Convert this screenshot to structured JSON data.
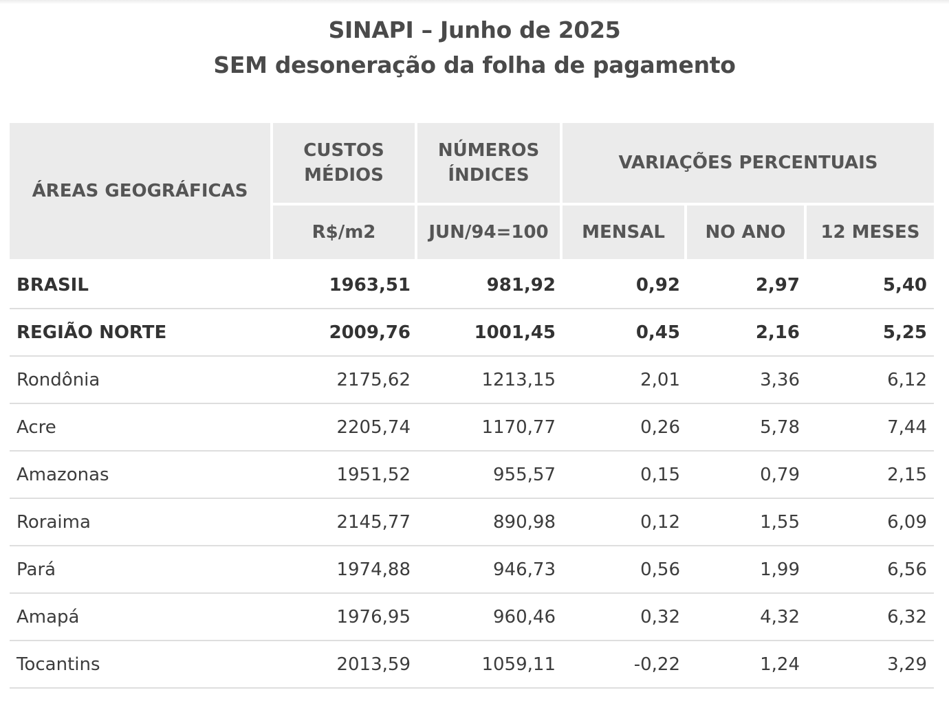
{
  "title": {
    "line1": "SINAPI – Junho de 2025",
    "line2": "SEM desoneração da folha de pagamento"
  },
  "table": {
    "headers": {
      "areas": "ÁREAS GEOGRÁFICAS",
      "custos": "CUSTOS MÉDIOS",
      "numeros": "NÚMEROS ÍNDICES",
      "variacoes": "VARIAÇÕES PERCENTUAIS",
      "custos_unit": "R$/m2",
      "numeros_unit": "JUN/94=100",
      "mensal": "MENSAL",
      "no_ano": "NO ANO",
      "doze_meses": "12 MESES"
    },
    "rows": [
      {
        "name": "BRASIL",
        "custo": "1963,51",
        "indice": "981,92",
        "mensal": "0,92",
        "ano": "2,97",
        "meses12": "5,40",
        "bold": true
      },
      {
        "name": "REGIÃO NORTE",
        "custo": "2009,76",
        "indice": "1001,45",
        "mensal": "0,45",
        "ano": "2,16",
        "meses12": "5,25",
        "bold": true
      },
      {
        "name": "Rondônia",
        "custo": "2175,62",
        "indice": "1213,15",
        "mensal": "2,01",
        "ano": "3,36",
        "meses12": "6,12",
        "bold": false
      },
      {
        "name": "Acre",
        "custo": "2205,74",
        "indice": "1170,77",
        "mensal": "0,26",
        "ano": "5,78",
        "meses12": "7,44",
        "bold": false
      },
      {
        "name": "Amazonas",
        "custo": "1951,52",
        "indice": "955,57",
        "mensal": "0,15",
        "ano": "0,79",
        "meses12": "2,15",
        "bold": false
      },
      {
        "name": "Roraima",
        "custo": "2145,77",
        "indice": "890,98",
        "mensal": "0,12",
        "ano": "1,55",
        "meses12": "6,09",
        "bold": false
      },
      {
        "name": "Pará",
        "custo": "1974,88",
        "indice": "946,73",
        "mensal": "0,56",
        "ano": "1,99",
        "meses12": "6,56",
        "bold": false
      },
      {
        "name": "Amapá",
        "custo": "1976,95",
        "indice": "960,46",
        "mensal": "0,32",
        "ano": "4,32",
        "meses12": "6,32",
        "bold": false
      },
      {
        "name": "Tocantins",
        "custo": "2013,59",
        "indice": "1059,11",
        "mensal": "-0,22",
        "ano": "1,24",
        "meses12": "3,29",
        "bold": false
      }
    ]
  }
}
